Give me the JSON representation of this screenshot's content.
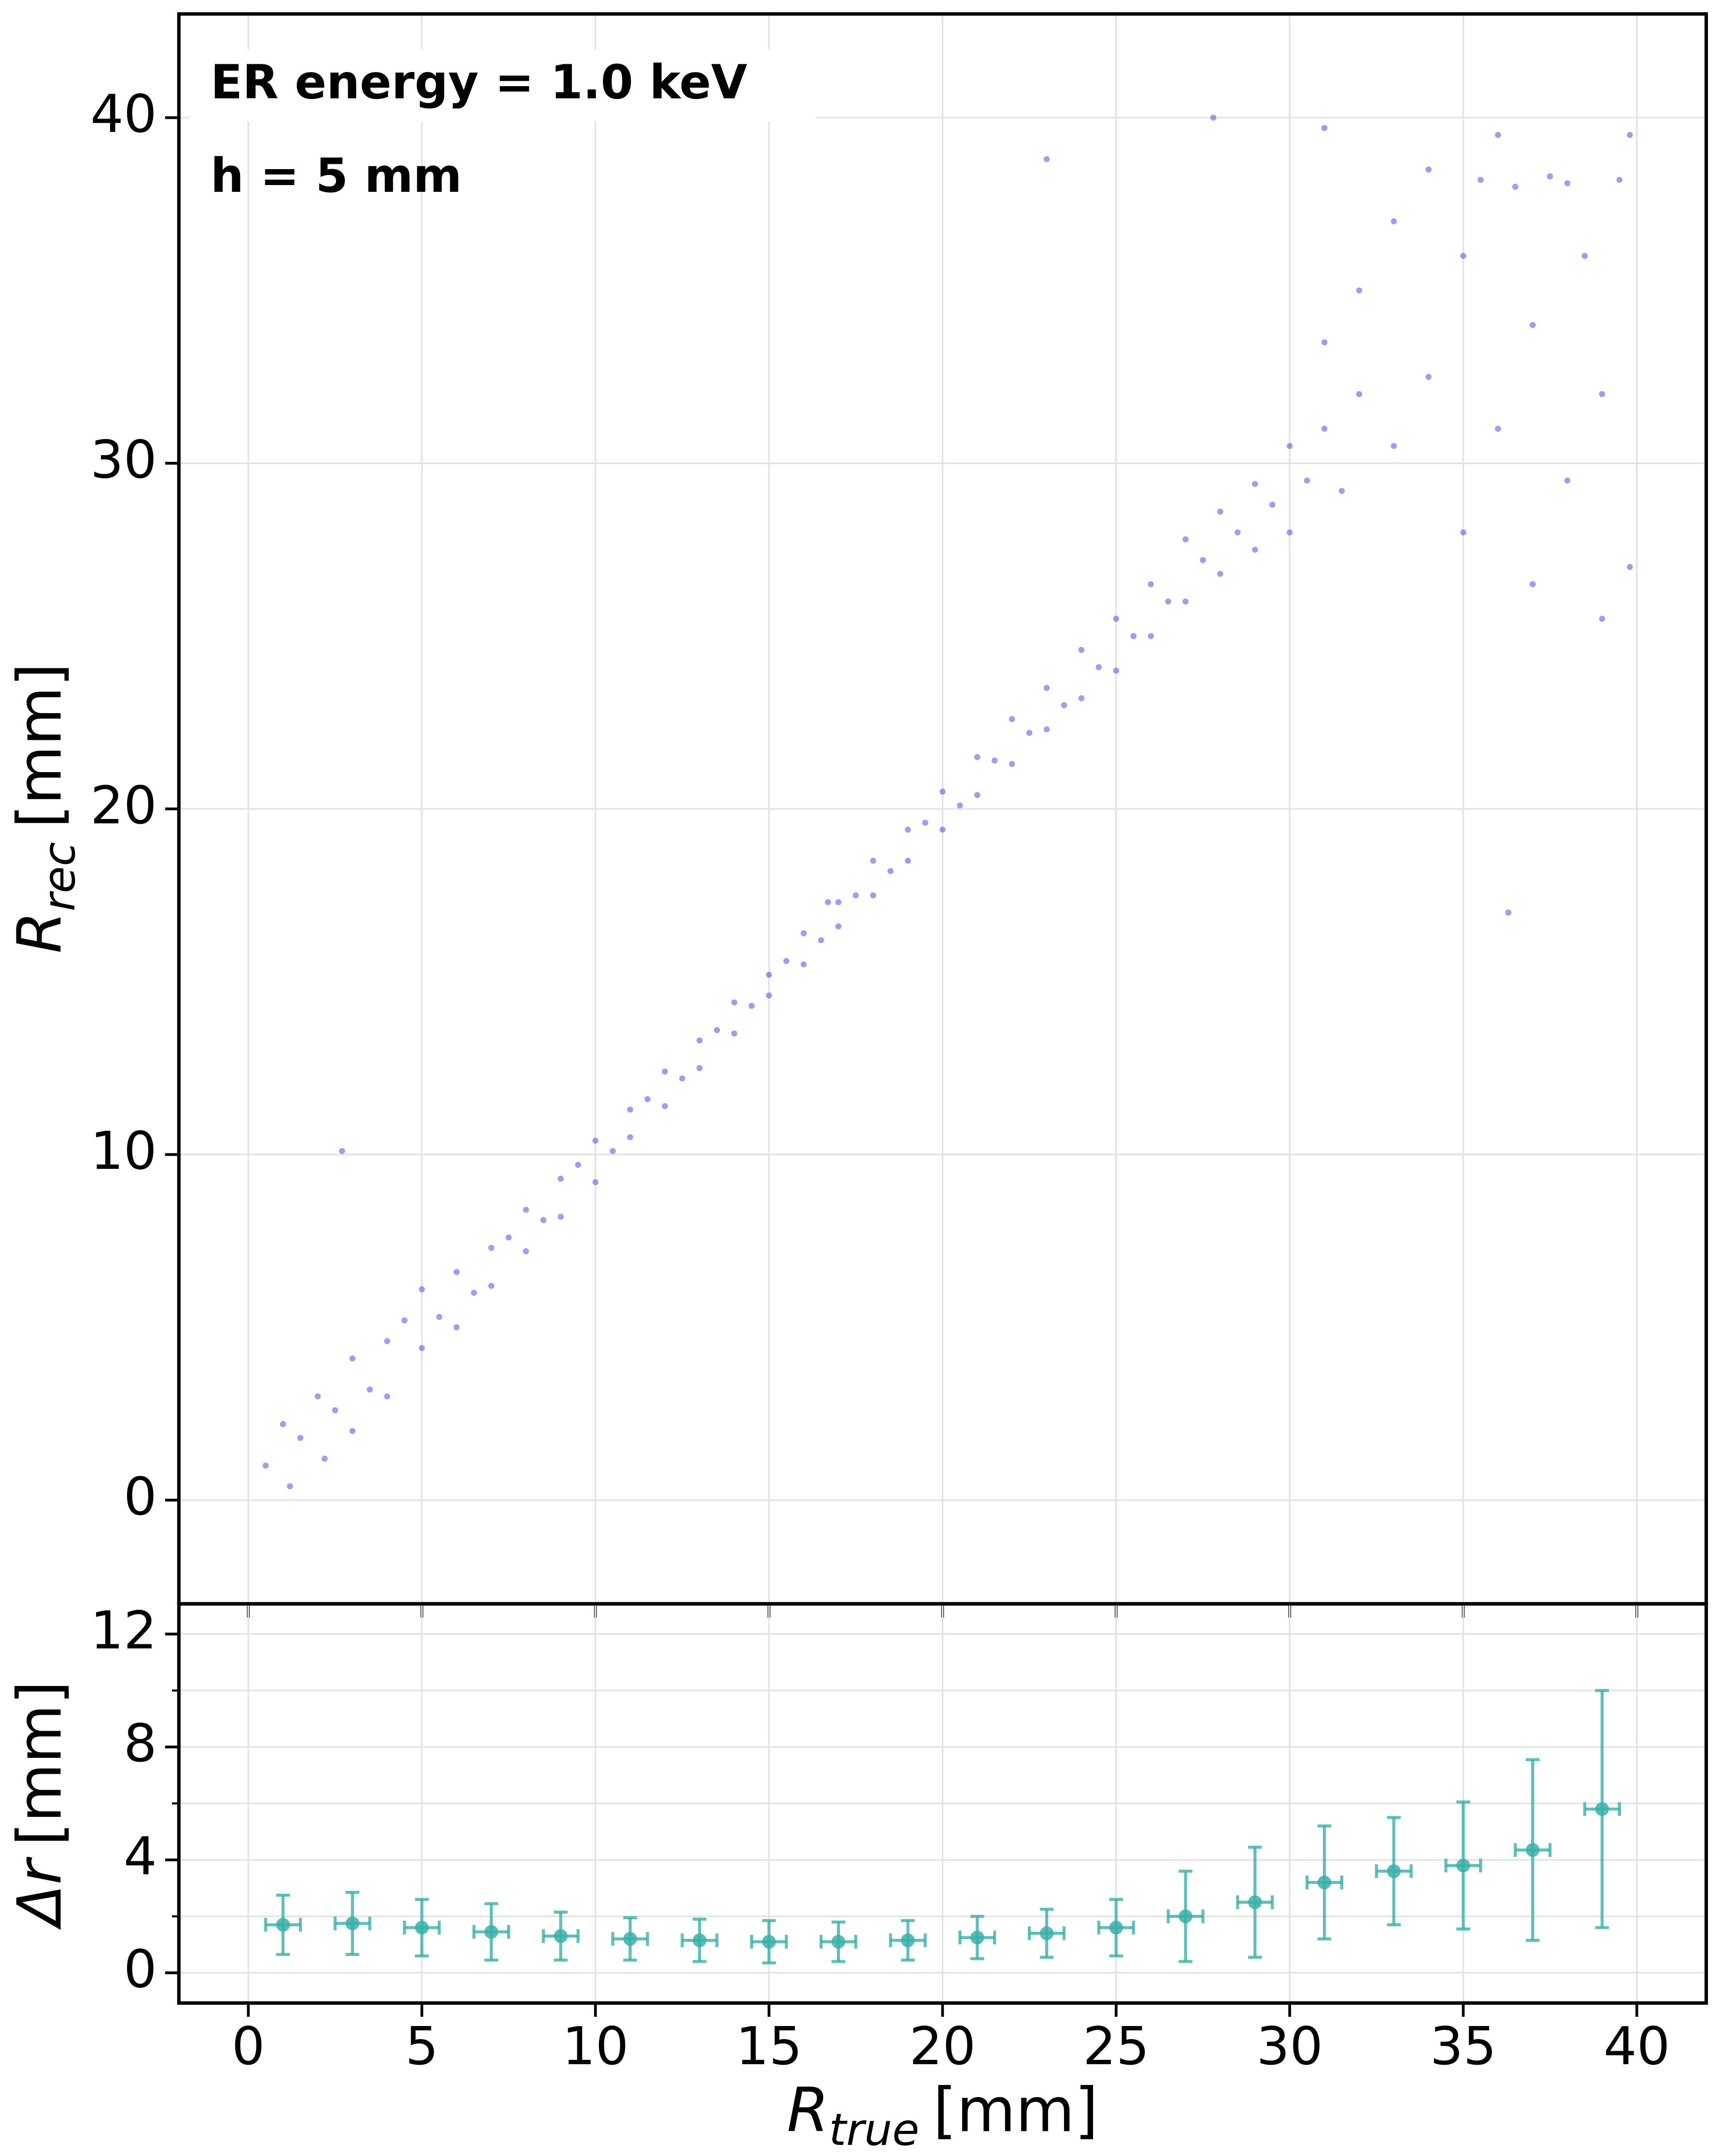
{
  "chart_data": [
    {
      "type": "scatter",
      "annotations": [
        "ER energy = 1.0 keV",
        "h = 5 mm"
      ],
      "ylabel": {
        "base": "R",
        "sub": "rec",
        "unit": "[mm]"
      },
      "color": "#4d4de6",
      "xlim": [
        -2,
        42
      ],
      "ylim": [
        -3,
        43
      ],
      "xticks": [
        0,
        5,
        10,
        15,
        20,
        25,
        30,
        35,
        40
      ],
      "xtick_labels": false,
      "yticks": [
        0,
        10,
        20,
        30,
        40
      ],
      "grid": true,
      "x": [
        0.5,
        1,
        1.2,
        1.5,
        2,
        2.2,
        2.5,
        3,
        3,
        3.5,
        4,
        4,
        4.5,
        5,
        5,
        5.5,
        6,
        6,
        6.5,
        7,
        7,
        7.5,
        8,
        8,
        8.5,
        9,
        9,
        9.5,
        10,
        10,
        10.5,
        11,
        11,
        11.5,
        12,
        12,
        12.5,
        13,
        13,
        13.5,
        14,
        14,
        14.5,
        15,
        15,
        15.5,
        16,
        16,
        16.5,
        17,
        17,
        17.5,
        18,
        18,
        18.5,
        19,
        19,
        19.5,
        20,
        20,
        20.5,
        21,
        21,
        21.5,
        22,
        22,
        22.5,
        23,
        23,
        23.5,
        24,
        24,
        24.5,
        25,
        25,
        25.5,
        26,
        26,
        26.5,
        27,
        27,
        27.5,
        28,
        28,
        28.5,
        29,
        29,
        29.5,
        30,
        30,
        30.5,
        31,
        31,
        31.5,
        32,
        32,
        33,
        33,
        34,
        34,
        35,
        35,
        35.5,
        36,
        36,
        36.5,
        37,
        37,
        37.5,
        38,
        38,
        38.5,
        39,
        39,
        39.5,
        39.8,
        39.8,
        16.7,
        27.8,
        31,
        36.3,
        2.7,
        23
      ],
      "values": [
        1.0,
        2.2,
        0.4,
        1.8,
        3.0,
        1.2,
        2.6,
        4.1,
        2.0,
        3.2,
        4.6,
        3.0,
        5.2,
        4.4,
        6.1,
        5.3,
        6.6,
        5.0,
        6.0,
        7.3,
        6.2,
        7.6,
        8.4,
        7.2,
        8.1,
        9.3,
        8.2,
        9.7,
        10.4,
        9.2,
        10.1,
        11.3,
        10.5,
        11.6,
        12.4,
        11.4,
        12.2,
        13.3,
        12.5,
        13.6,
        14.4,
        13.5,
        14.3,
        15.2,
        14.6,
        15.6,
        16.4,
        15.5,
        16.2,
        17.3,
        16.6,
        17.5,
        18.5,
        17.5,
        18.2,
        19.4,
        18.5,
        19.6,
        20.5,
        19.4,
        20.1,
        21.5,
        20.4,
        21.4,
        22.6,
        21.3,
        22.2,
        23.5,
        22.3,
        23.0,
        24.6,
        23.2,
        24.1,
        25.5,
        24.0,
        25.0,
        26.5,
        25.0,
        26.0,
        27.8,
        26.0,
        27.2,
        28.6,
        26.8,
        28.0,
        29.4,
        27.5,
        28.8,
        30.5,
        28.0,
        29.5,
        31.0,
        33.5,
        29.2,
        32.0,
        35.0,
        30.5,
        37.0,
        32.5,
        38.5,
        28.0,
        36.0,
        38.2,
        31.0,
        39.5,
        38.0,
        26.5,
        34.0,
        38.3,
        29.5,
        38.1,
        36.0,
        25.5,
        32.0,
        38.2,
        27.0,
        39.5,
        17.3,
        40,
        39.7,
        17.0,
        10.1,
        38.8
      ]
    },
    {
      "type": "errorbar",
      "ylabel": {
        "base": "Δr",
        "unit": "[mm]"
      },
      "xlabel": {
        "base": "R",
        "sub": "true",
        "unit": "[mm]"
      },
      "color": "#3aafa9",
      "xlim": [
        -2,
        42
      ],
      "ylim": [
        -1.07,
        13.07
      ],
      "xticks": [
        0,
        5,
        10,
        15,
        20,
        25,
        30,
        35,
        40
      ],
      "yticks": [
        0,
        4,
        8,
        12
      ],
      "minor_yticks": [
        2,
        6,
        10
      ],
      "grid": true,
      "x": [
        1,
        3,
        5,
        7,
        9,
        11,
        13,
        15,
        17,
        19,
        21,
        23,
        25,
        27,
        29,
        31,
        33,
        35,
        37,
        39
      ],
      "values": [
        1.7,
        1.75,
        1.6,
        1.45,
        1.3,
        1.2,
        1.15,
        1.1,
        1.1,
        1.15,
        1.25,
        1.4,
        1.6,
        2.0,
        2.5,
        3.2,
        3.6,
        3.8,
        4.35,
        5.8
      ],
      "yerr": [
        1.05,
        1.1,
        1.0,
        1.0,
        0.85,
        0.75,
        0.75,
        0.75,
        0.7,
        0.7,
        0.75,
        0.85,
        1.0,
        1.6,
        1.95,
        2.0,
        1.9,
        2.25,
        3.2,
        4.2
      ],
      "xerr": [
        0.5,
        0.5,
        0.5,
        0.5,
        0.5,
        0.5,
        0.5,
        0.5,
        0.5,
        0.5,
        0.5,
        0.5,
        0.5,
        0.5,
        0.5,
        0.5,
        0.5,
        0.5,
        0.5,
        0.5
      ]
    }
  ]
}
